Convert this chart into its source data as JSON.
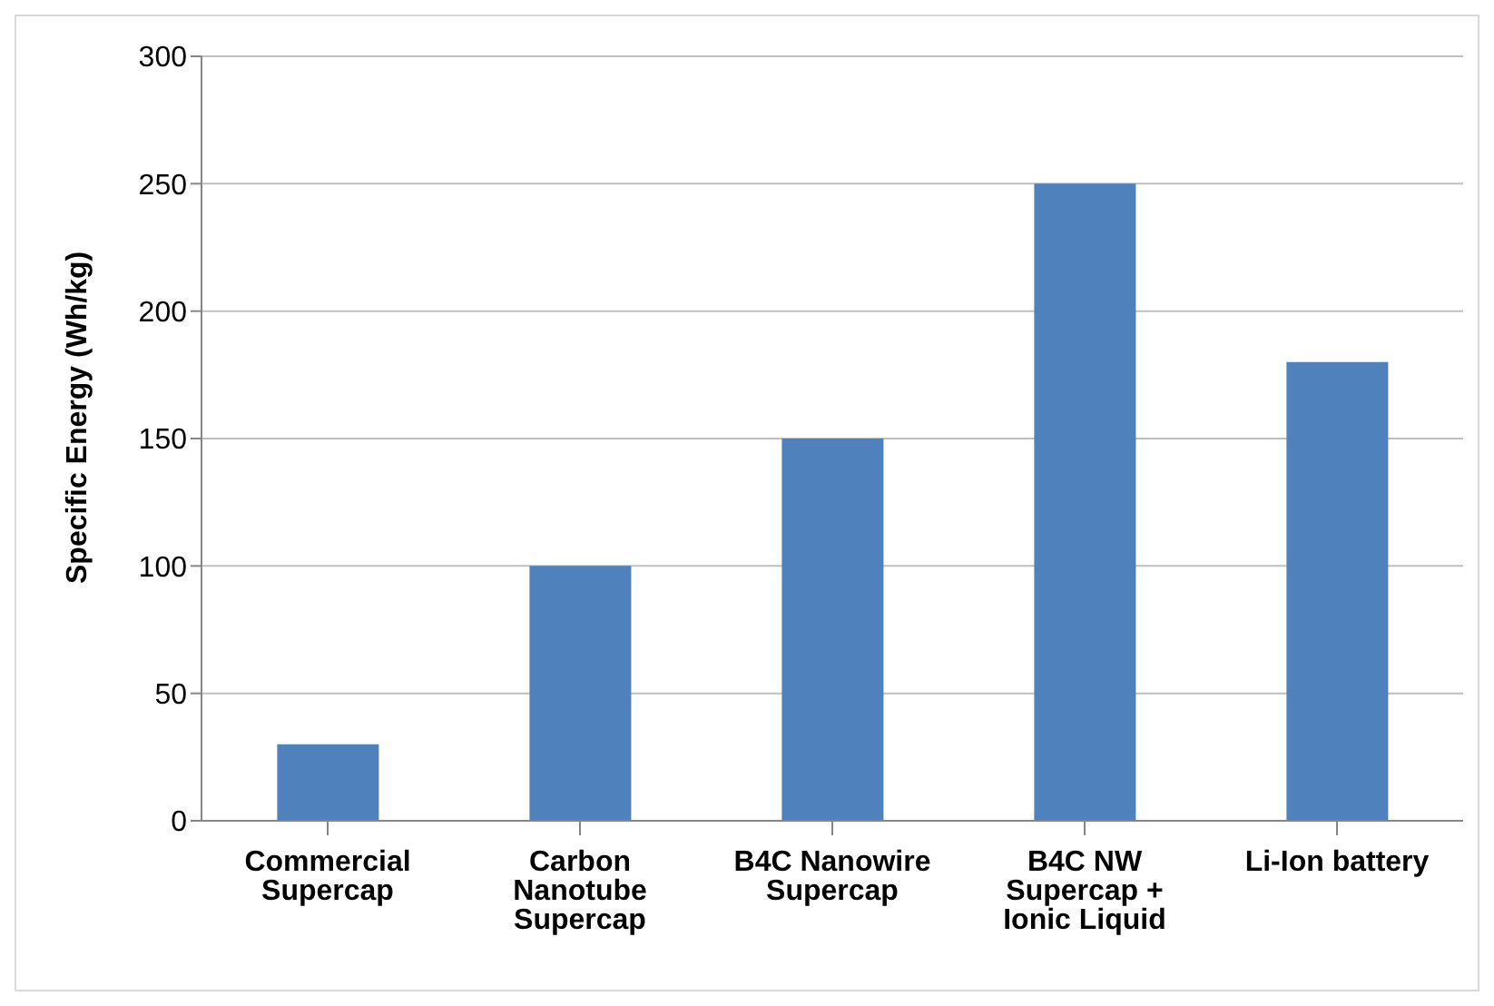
{
  "chart_data": {
    "type": "bar",
    "ylabel": "Specific Energy (Wh/kg)",
    "categories": [
      "Commercial Supercap",
      "Carbon Nanotube Supercap",
      "B4C Nanowire Supercap",
      "B4C NW Supercap + Ionic Liquid",
      "Li-Ion battery"
    ],
    "values": [
      30,
      100,
      150,
      250,
      180
    ],
    "color": "#4f81bd",
    "ylim": [
      0,
      300
    ],
    "yticks": [
      0,
      50,
      100,
      150,
      200,
      250,
      300
    ],
    "grid": "y",
    "legend": false
  }
}
